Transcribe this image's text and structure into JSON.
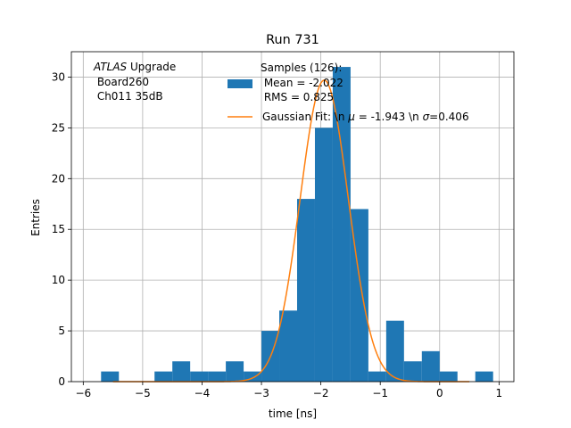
{
  "chart_data": {
    "type": "bar",
    "title": "Run 731",
    "xlabel": "time [ns]",
    "ylabel": "Entries",
    "xlim": [
      -6.2,
      1.25
    ],
    "ylim": [
      0,
      32.5
    ],
    "grid": true,
    "xticks": [
      -6,
      -5,
      -4,
      -3,
      -2,
      -1,
      0,
      1
    ],
    "yticks": [
      0,
      5,
      10,
      15,
      20,
      25,
      30
    ],
    "annotation": {
      "atlas": "ATLAS",
      "atlas_suffix": " Upgrade",
      "line2": " Board260",
      "line3": " Ch011 35dB"
    },
    "legend": {
      "position": "top-right",
      "hist_line1": "Samples (126):",
      "hist_line2": " Mean = -2.022",
      "hist_line3": " RMS = 0.825",
      "fit_prefix": "Gaussian Fit: \\n ",
      "fit_mu_symbol": "μ",
      "fit_mid": " = -1.943 \\n ",
      "fit_sigma_symbol": "σ",
      "fit_suffix": "=0.406"
    },
    "histogram": {
      "name": "Samples (126)",
      "color": "#1f77b4",
      "bin_edges": [
        -6.0,
        -5.7,
        -5.4,
        -5.1,
        -4.8,
        -4.5,
        -4.2,
        -3.9,
        -3.6,
        -3.3,
        -3.0,
        -2.7,
        -2.4,
        -2.1,
        -1.8,
        -1.5,
        -1.2,
        -0.9,
        -0.6,
        -0.3,
        0.0,
        0.3,
        0.6,
        0.9
      ],
      "counts": [
        0,
        1,
        0,
        0,
        1,
        2,
        1,
        1,
        2,
        1,
        5,
        7,
        18,
        25,
        31,
        17,
        1,
        6,
        2,
        3,
        1,
        0,
        1
      ]
    },
    "fit": {
      "name": "Gaussian Fit",
      "color": "#ff7f0e",
      "mu": -1.943,
      "sigma": 0.406,
      "amplitude": 29.7,
      "x_range": [
        -5.5,
        0.5
      ]
    }
  }
}
